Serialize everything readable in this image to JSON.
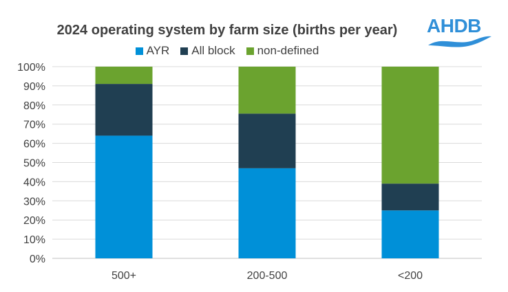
{
  "chart_data": {
    "type": "bar",
    "stacked": true,
    "title": "2024 operating system by farm size (births per year)",
    "categories": [
      "500+",
      "200-500",
      "<200"
    ],
    "series": [
      {
        "name": "AYR",
        "color": "#0090d8",
        "values": [
          64,
          47,
          25
        ]
      },
      {
        "name": "All block",
        "color": "#203f52",
        "values": [
          27,
          28.5,
          14
        ]
      },
      {
        "name": "non-defined",
        "color": "#6ba32f",
        "values": [
          9,
          24.5,
          61
        ]
      }
    ],
    "y_ticks": [
      "0%",
      "10%",
      "20%",
      "30%",
      "40%",
      "50%",
      "60%",
      "70%",
      "80%",
      "90%",
      "100%"
    ],
    "ylim": [
      0,
      100
    ],
    "grid": true,
    "legend_position": "top"
  },
  "logo": {
    "text": "AHDB",
    "color": "#2f8fd8",
    "wave_icon": "wave-icon"
  }
}
